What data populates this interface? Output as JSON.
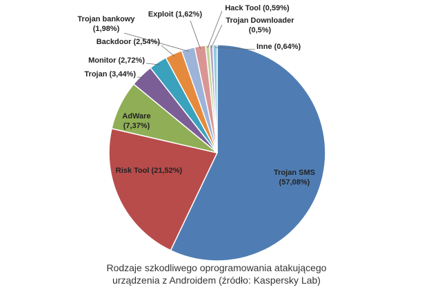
{
  "chart_data": {
    "type": "pie",
    "start_angle_deg": 90,
    "direction": "clockwise",
    "slices": [
      {
        "label": "Trojan SMS",
        "label_lines": [
          "Trojan SMS",
          "(57,08%)"
        ],
        "value": 57.08,
        "color": "#4f7db3"
      },
      {
        "label": "Risk Tool",
        "label_lines": [
          "Risk Tool (21,52%)"
        ],
        "value": 21.52,
        "color": "#b84c4b"
      },
      {
        "label": "AdWare",
        "label_lines": [
          "AdWare",
          "(7,37%)"
        ],
        "value": 7.37,
        "color": "#8fae55"
      },
      {
        "label": "Trojan",
        "label_lines": [
          "Trojan (3,44%)"
        ],
        "value": 3.44,
        "color": "#7c5e97"
      },
      {
        "label": "Monitor",
        "label_lines": [
          "Monitor (2,72%)"
        ],
        "value": 2.72,
        "color": "#3aa2bc"
      },
      {
        "label": "Backdoor",
        "label_lines": [
          "Backdoor (2,54%)"
        ],
        "value": 2.54,
        "color": "#e58a3c"
      },
      {
        "label": "Trojan bankowy",
        "label_lines": [
          "Trojan bankowy",
          "(1,98%)"
        ],
        "value": 1.98,
        "color": "#9db3d8"
      },
      {
        "label": "Exploit",
        "label_lines": [
          "Exploit (1,62%)"
        ],
        "value": 1.62,
        "color": "#d99594"
      },
      {
        "label": "Hack Tool",
        "label_lines": [
          "Hack Tool (0,59%)"
        ],
        "value": 0.59,
        "color": "#c3d69b"
      },
      {
        "label": "Trojan Downloader",
        "label_lines": [
          "Trojan Downloader",
          "(0,5%)"
        ],
        "value": 0.5,
        "color": "#b3a2c7"
      },
      {
        "label": "Inne",
        "label_lines": [
          "Inne (0,64%)"
        ],
        "value": 0.64,
        "color": "#93cddd"
      }
    ]
  },
  "caption": {
    "line1": "Rodzaje szkodliwego oprogramowania atakującego",
    "line2": "urządzenia z Androidem (źródło: Kaspersky Lab)"
  }
}
